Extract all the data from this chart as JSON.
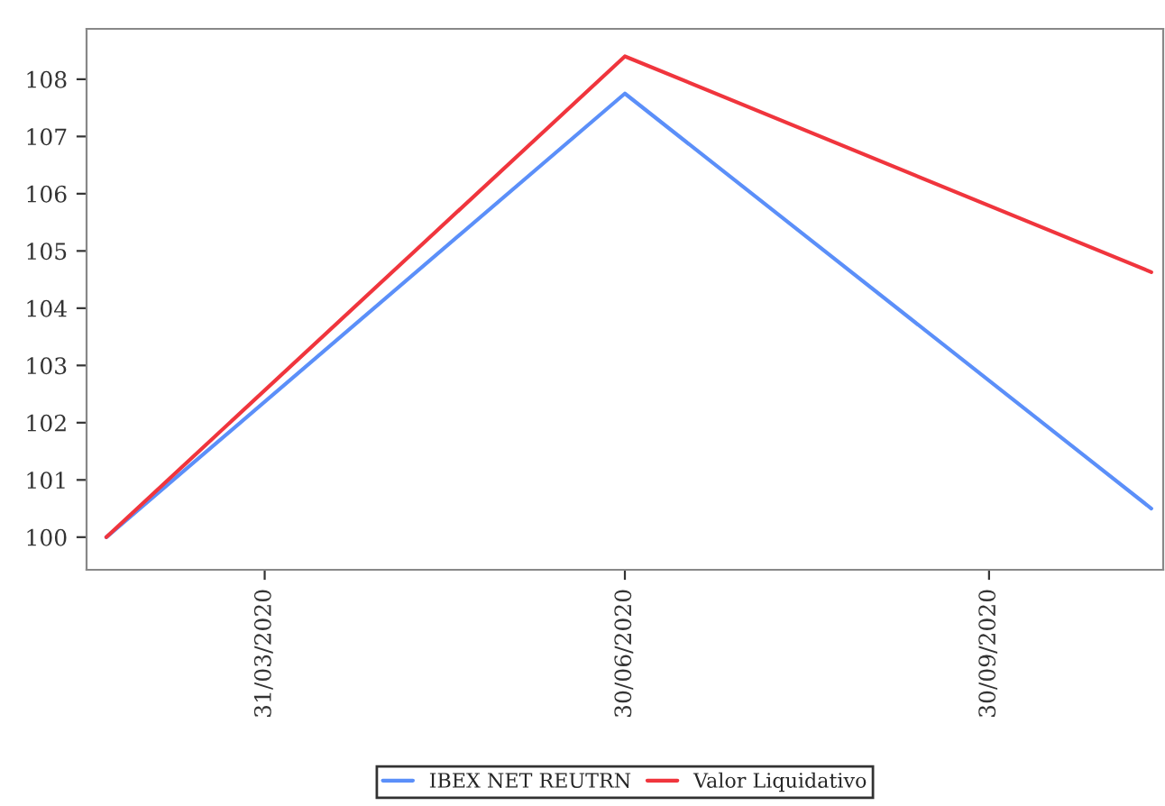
{
  "chart_data": {
    "type": "line",
    "x": [
      "2020-02-20",
      "2020-06-30",
      "2020-11-10"
    ],
    "series": [
      {
        "name": "IBEX NET REUTRN",
        "color": "#5b8ff9",
        "values": [
          100,
          107.75,
          100.5
        ]
      },
      {
        "name": "Valor Liquidativo",
        "color": "#f0353d",
        "values": [
          100,
          108.4,
          104.63
        ]
      }
    ],
    "xlim": [
      "2020-02-15",
      "2020-11-13"
    ],
    "xticks": [
      {
        "value": "2020-03-31",
        "label": "31/03/2020"
      },
      {
        "value": "2020-06-30",
        "label": "30/06/2020"
      },
      {
        "value": "2020-09-30",
        "label": "30/09/2020"
      }
    ],
    "ylim": [
      99.43,
      108.88
    ],
    "yticks": [
      100,
      101,
      102,
      103,
      104,
      105,
      106,
      107,
      108
    ],
    "grid": false,
    "legend": "bottom",
    "marker": "none",
    "line_style": "solid"
  }
}
